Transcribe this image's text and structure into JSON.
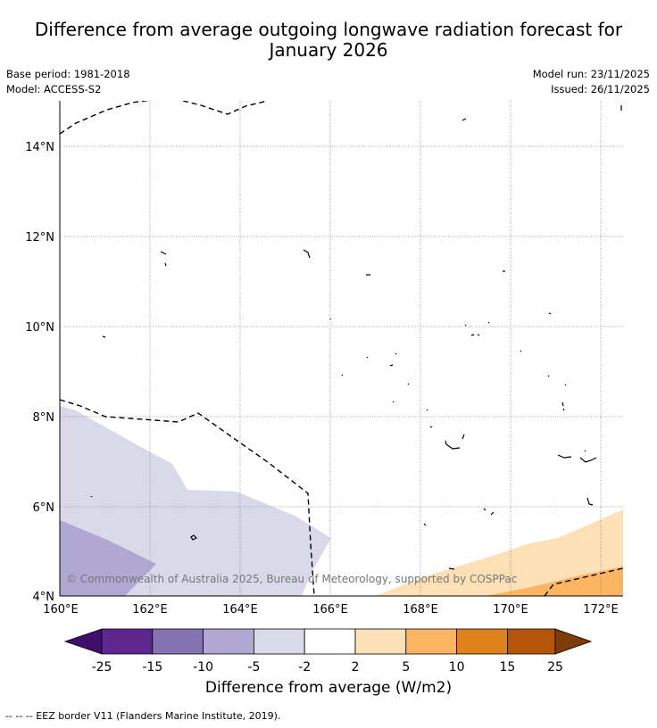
{
  "title": {
    "line1": "Difference from average outgoing longwave radiation forecast for",
    "line2": "January 2026"
  },
  "meta": {
    "base_period": "Base period: 1981-2018",
    "model": "Model: ACCESS-S2",
    "model_run": "Model run: 23/11/2025",
    "issued": "Issued: 26/11/2025"
  },
  "map": {
    "lat_labels": [
      "14°N",
      "12°N",
      "10°N",
      "8°N",
      "6°N",
      "4°N"
    ],
    "lon_labels": [
      "160°E",
      "162°E",
      "164°E",
      "166°E",
      "168°E",
      "170°E",
      "172°E"
    ],
    "copyright": "© Commonwealth of Australia 2025, Bureau of Meteorology, supported by COSPPac"
  },
  "colorbar": {
    "ticks": [
      "-25",
      "-15",
      "-10",
      "-5",
      "-2",
      "2",
      "5",
      "10",
      "15",
      "25"
    ],
    "colors": [
      "#3f0f6e",
      "#5e2790",
      "#8473b0",
      "#b0a8d2",
      "#d9d9ea",
      "#ffffff",
      "#fde0b5",
      "#fbb561",
      "#e0821b",
      "#b45508",
      "#7f3b08"
    ],
    "label": "Difference from average (W/m2)"
  },
  "footnote": "--  --  -- EEZ border V11 (Flanders Marine Institute, 2019)."
}
